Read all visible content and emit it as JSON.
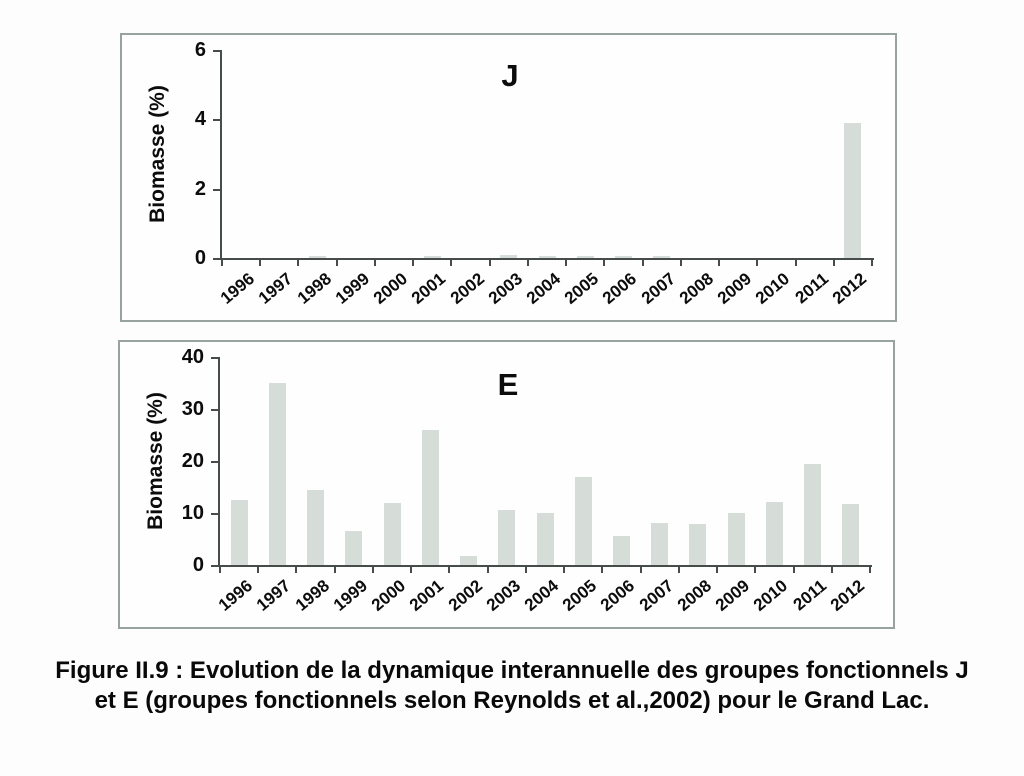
{
  "figure": {
    "caption_line1": "Figure II.9 : Evolution de la dynamique interannuelle des groupes fonctionnels J",
    "caption_line2": "et E (groupes fonctionnels selon Reynolds et al.,2002) pour le Grand Lac."
  },
  "colors": {
    "bar_fill": "#d6dcd8",
    "axis": "#454c49",
    "frame_border": "#99a39e",
    "text": "#0c0c0c"
  },
  "chart_data": [
    {
      "type": "bar",
      "title": "J",
      "ylabel": "Biomasse (%)",
      "xlabel": "",
      "categories": [
        "1996",
        "1997",
        "1998",
        "1999",
        "2000",
        "2001",
        "2002",
        "2003",
        "2004",
        "2005",
        "2006",
        "2007",
        "2008",
        "2009",
        "2010",
        "2011",
        "2012"
      ],
      "values": [
        0,
        0,
        0.06,
        0,
        0,
        0.06,
        0,
        0.08,
        0.06,
        0.06,
        0.06,
        0.06,
        0,
        0,
        0,
        0,
        3.9
      ],
      "ylim": [
        0,
        6
      ],
      "yticks": [
        0,
        2,
        4,
        6
      ],
      "grid": false,
      "legend": "none"
    },
    {
      "type": "bar",
      "title": "E",
      "ylabel": "Biomasse (%)",
      "xlabel": "",
      "categories": [
        "1996",
        "1997",
        "1998",
        "1999",
        "2000",
        "2001",
        "2002",
        "2003",
        "2004",
        "2005",
        "2006",
        "2007",
        "2008",
        "2009",
        "2010",
        "2011",
        "2012"
      ],
      "values": [
        12.5,
        35,
        14.5,
        6.5,
        12,
        26,
        1.8,
        10.5,
        10,
        17,
        5.5,
        8,
        7.8,
        10,
        12.2,
        19.5,
        11.8
      ],
      "ylim": [
        0,
        40
      ],
      "yticks": [
        0,
        10,
        20,
        30,
        40
      ],
      "grid": false,
      "legend": "none"
    }
  ]
}
